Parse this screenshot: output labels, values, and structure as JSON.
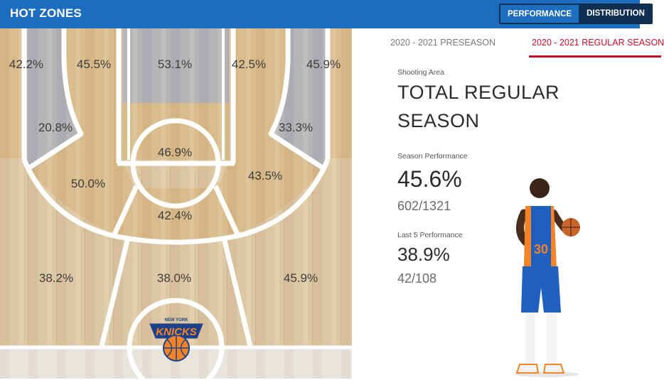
{
  "header": {
    "title": "HOT ZONES",
    "toggle": {
      "performance": "PERFORMANCE",
      "distribution": "DISTRIBUTION"
    }
  },
  "court": {
    "team_logo": {
      "text_top": "NEW YORK",
      "text_main": "KNICKS"
    },
    "zones": [
      {
        "id": "left-corner-3",
        "value": "42.2%"
      },
      {
        "id": "left-wing-mid",
        "value": "45.5%"
      },
      {
        "id": "paint",
        "value": "53.1%"
      },
      {
        "id": "right-wing-mid",
        "value": "42.5%"
      },
      {
        "id": "right-corner-3",
        "value": "45.9%"
      },
      {
        "id": "left-baseline-mid",
        "value": "20.8%"
      },
      {
        "id": "right-baseline-mid",
        "value": "33.3%"
      },
      {
        "id": "free-throw",
        "value": "46.9%"
      },
      {
        "id": "left-elbow-mid",
        "value": "50.0%"
      },
      {
        "id": "right-elbow-mid",
        "value": "43.5%"
      },
      {
        "id": "top-key-mid",
        "value": "42.4%"
      },
      {
        "id": "left-wing-3",
        "value": "38.2%"
      },
      {
        "id": "top-3",
        "value": "38.0%"
      },
      {
        "id": "right-wing-3",
        "value": "45.9%"
      }
    ]
  },
  "panel": {
    "tabs": [
      "2020 - 2021 PRESEASON",
      "2020 - 2021 REGULAR SEASON"
    ],
    "active_tab": 1,
    "shooting_area_label": "Shooting Area",
    "shooting_area_line1": "TOTAL REGULAR",
    "shooting_area_line2": "SEASON",
    "season_label": "Season Performance",
    "season_pct": "45.6%",
    "season_frac": "602/1321",
    "last5_label": "Last 5 Performance",
    "last5_pct": "38.9%",
    "last5_frac": "42/108",
    "player_number": "30"
  },
  "colors": {
    "header": "#1c6dbf",
    "accent": "#c8102e",
    "zone_hot": "#d9c196",
    "zone_cold": "#b2b2b6",
    "floor": "#d8c4a2"
  }
}
